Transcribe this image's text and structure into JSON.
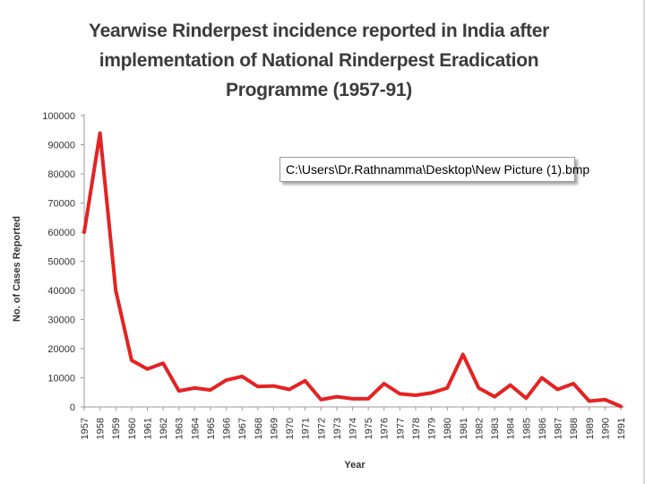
{
  "chart_data": {
    "type": "line",
    "title": "Yearwise Rinderpest incidence reported in India after implementation of National Rinderpest Eradication Programme (1957-91)",
    "xlabel": "Year",
    "ylabel": "No. of Cases Reported",
    "ylim": [
      0,
      100000
    ],
    "yticks": [
      "0",
      "10000",
      "20000",
      "30000",
      "40000",
      "50000",
      "60000",
      "70000",
      "80000",
      "90000",
      "100000"
    ],
    "x": [
      "1957",
      "1958",
      "1959",
      "1960",
      "1961",
      "1962",
      "1963",
      "1964",
      "1965",
      "1966",
      "1967",
      "1968",
      "1969",
      "1970",
      "1971",
      "1972",
      "1973",
      "1974",
      "1975",
      "1976",
      "1977",
      "1978",
      "1979",
      "1980",
      "1981",
      "1982",
      "1983",
      "1984",
      "1985",
      "1986",
      "1987",
      "1988",
      "1989",
      "1990",
      "1991"
    ],
    "series": [
      {
        "values": [
          60000,
          94000,
          40000,
          16000,
          13000,
          15000,
          5500,
          6500,
          5800,
          9200,
          10500,
          7000,
          7200,
          6000,
          9000,
          2500,
          3500,
          2800,
          2800,
          8000,
          4500,
          4000,
          4800,
          6500,
          18000,
          6500,
          3500,
          7500,
          3000,
          10000,
          6000,
          8000,
          2000,
          2500,
          200
        ],
        "color": "#e32322"
      }
    ],
    "grid": false
  },
  "title_lines": [
    "Yearwise Rinderpest incidence reported in India after",
    "implementation of National Rinderpest Eradication",
    "Programme (1957-91)"
  ],
  "tooltip": "C:\\Users\\Dr.Rathnamma\\Desktop\\New Picture (1).bmp"
}
